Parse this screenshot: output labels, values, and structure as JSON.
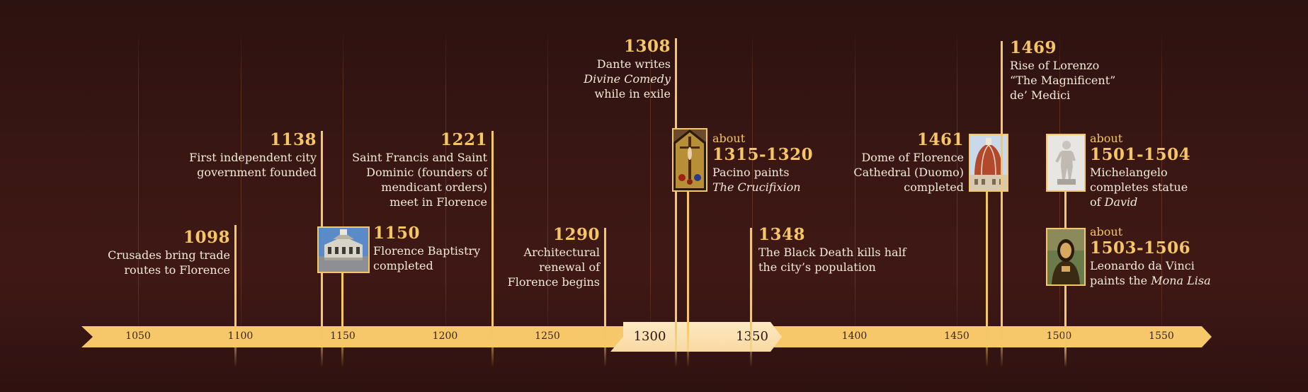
{
  "axis": {
    "ticks": [
      {
        "label": "1050",
        "big": false
      },
      {
        "label": "1100",
        "big": false
      },
      {
        "label": "1150",
        "big": false
      },
      {
        "label": "1200",
        "big": false
      },
      {
        "label": "1250",
        "big": false
      },
      {
        "label": "1300",
        "big": true
      },
      {
        "label": "1350",
        "big": true
      },
      {
        "label": "1400",
        "big": false
      },
      {
        "label": "1450",
        "big": false
      },
      {
        "label": "1500",
        "big": false
      },
      {
        "label": "1550",
        "big": false
      }
    ]
  },
  "events": [
    {
      "id": "crusades",
      "year": "1098",
      "lines": [
        "Crusades bring trade",
        "routes to Florence"
      ]
    },
    {
      "id": "independent-city",
      "year": "1138",
      "lines": [
        "First independent city",
        "government founded"
      ]
    },
    {
      "id": "baptistry",
      "year": "1150",
      "lines": [
        "Florence Baptistry",
        "completed"
      ],
      "image": "baptistry"
    },
    {
      "id": "francis-dominic",
      "year": "1221",
      "lines": [
        "Saint Francis and Saint",
        "Dominic (founders of",
        "mendicant orders)",
        "meet in Florence"
      ]
    },
    {
      "id": "architectural-renewal",
      "year": "1290",
      "lines": [
        "Architectural",
        "renewal of",
        "Florence begins"
      ]
    },
    {
      "id": "dante",
      "year": "1308",
      "lines": [
        "Dante writes",
        "Divine Comedy",
        "while in exile"
      ],
      "italic_lines": [
        1
      ]
    },
    {
      "id": "pacino",
      "about": "about",
      "year": "1315-1320",
      "lines": [
        "Pacino paints",
        "The Crucifixion"
      ],
      "italic_lines": [
        1
      ],
      "image": "crucifixion"
    },
    {
      "id": "black-death",
      "year": "1348",
      "lines": [
        "The Black Death kills half",
        "the city’s population"
      ]
    },
    {
      "id": "duomo",
      "year": "1461",
      "lines": [
        "Dome of Florence",
        "Cathedral (Duomo)",
        "completed"
      ],
      "image": "duomo"
    },
    {
      "id": "lorenzo",
      "year": "1469",
      "lines": [
        "Rise of Lorenzo",
        "“The Magnificent”",
        "de’ Medici"
      ]
    },
    {
      "id": "david",
      "about": "about",
      "year": "1501-1504",
      "lines": [
        "Michelangelo",
        "completes statue",
        "of David"
      ],
      "italic_words": {
        "2": "David"
      },
      "image": "david"
    },
    {
      "id": "mona-lisa",
      "about": "about",
      "year": "1503-1506",
      "lines": [
        "Leonardo da Vinci",
        "paints the Mona Lisa"
      ],
      "italic_words": {
        "1": "Mona Lisa"
      },
      "image": "mona-lisa"
    }
  ],
  "colors": {
    "accent": "#f6c565",
    "band": "#f6c86a",
    "highlight": "#fde9c2",
    "text": "#f3ead8",
    "background": "#3a1714"
  }
}
